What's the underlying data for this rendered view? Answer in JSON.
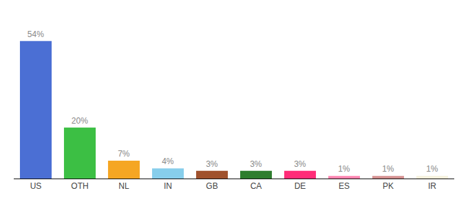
{
  "chart_data": {
    "type": "bar",
    "categories": [
      "US",
      "OTH",
      "NL",
      "IN",
      "GB",
      "CA",
      "DE",
      "ES",
      "PK",
      "IR"
    ],
    "values": [
      54,
      20,
      7,
      4,
      3,
      3,
      3,
      1,
      1,
      1
    ],
    "value_labels": [
      "54%",
      "20%",
      "7%",
      "4%",
      "3%",
      "3%",
      "3%",
      "1%",
      "1%",
      "1%"
    ],
    "colors": [
      "#4B6FD4",
      "#3CBF44",
      "#F5A623",
      "#87CEEB",
      "#A0522D",
      "#2E7D2E",
      "#FF2D78",
      "#FF85B0",
      "#D49090",
      "#F5F0DC"
    ],
    "ylim": [
      0,
      62
    ],
    "grid": false,
    "data_labels": true,
    "tick_labels": "x"
  }
}
